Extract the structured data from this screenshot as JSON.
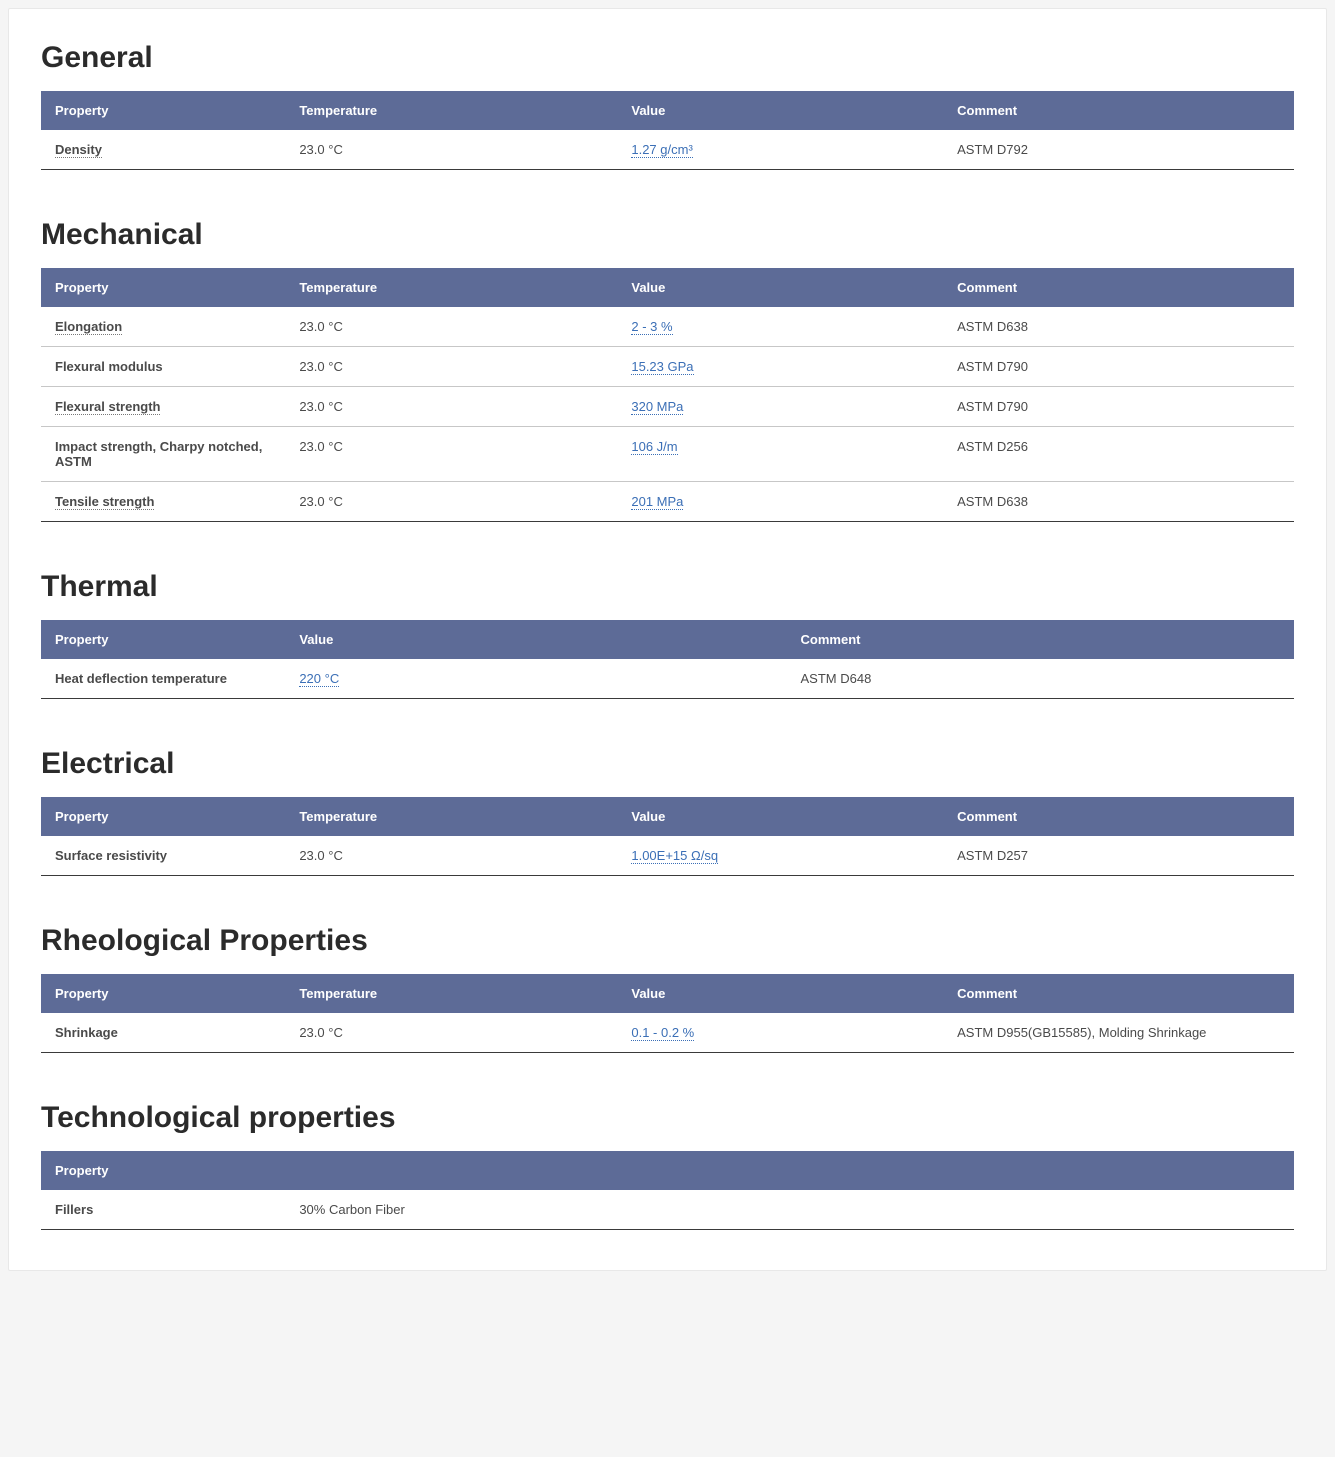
{
  "colors": {
    "header_bg": "#5d6b97",
    "header_text": "#ffffff",
    "title_text": "#2b2b2b",
    "body_text": "#4a4a4a",
    "link_text": "#3b6fb6",
    "row_divider": "#c7c7c7",
    "table_bottom_border": "#3a3a3a",
    "page_bg": "#ffffff"
  },
  "headers": {
    "property": "Property",
    "temperature": "Temperature",
    "value": "Value",
    "comment": "Comment"
  },
  "sections": {
    "general": {
      "title": "General",
      "rows": [
        {
          "property": "Density",
          "prop_linked": true,
          "temperature": "23.0 °C",
          "value": "1.27 g/cm³",
          "comment": "ASTM D792"
        }
      ]
    },
    "mechanical": {
      "title": "Mechanical",
      "rows": [
        {
          "property": "Elongation",
          "prop_linked": true,
          "temperature": "23.0 °C",
          "value": "2 - 3 %",
          "comment": "ASTM D638"
        },
        {
          "property": "Flexural modulus",
          "prop_linked": false,
          "temperature": "23.0 °C",
          "value": "15.23 GPa",
          "comment": "ASTM D790"
        },
        {
          "property": "Flexural strength",
          "prop_linked": true,
          "temperature": "23.0 °C",
          "value": "320 MPa",
          "comment": "ASTM D790"
        },
        {
          "property": "Impact strength, Charpy notched, ASTM",
          "prop_linked": false,
          "temperature": "23.0 °C",
          "value": "106 J/m",
          "comment": "ASTM D256"
        },
        {
          "property": "Tensile strength",
          "prop_linked": true,
          "temperature": "23.0 °C",
          "value": "201 MPa",
          "comment": "ASTM D638"
        }
      ]
    },
    "thermal": {
      "title": "Thermal",
      "rows": [
        {
          "property": "Heat deflection temperature",
          "prop_linked": false,
          "value": "220 °C",
          "comment": "ASTM D648"
        }
      ]
    },
    "electrical": {
      "title": "Electrical",
      "rows": [
        {
          "property": "Surface resistivity",
          "prop_linked": false,
          "temperature": "23.0 °C",
          "value": "1.00E+15 Ω/sq",
          "comment": "ASTM D257"
        }
      ]
    },
    "rheological": {
      "title": "Rheological Properties",
      "rows": [
        {
          "property": "Shrinkage",
          "prop_linked": false,
          "temperature": "23.0 °C",
          "value": "0.1 - 0.2 %",
          "comment": "ASTM D955(GB15585), Molding Shrinkage"
        }
      ]
    },
    "technological": {
      "title": "Technological properties",
      "rows": [
        {
          "property": "Fillers",
          "prop_linked": false,
          "value_plain": "30% Carbon Fiber"
        }
      ]
    }
  }
}
